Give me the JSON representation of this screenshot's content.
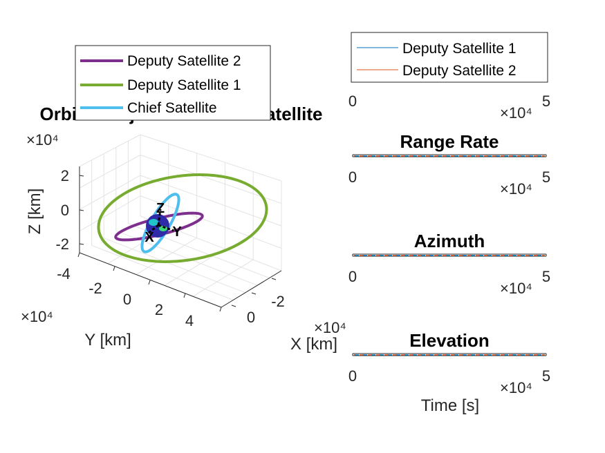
{
  "chart_data": [
    {
      "type": "line",
      "title": "Orbital Trajectories from Satellite",
      "xlabel": "X [km]",
      "ylabel": "Y [km]",
      "zlabel": "Z [km]",
      "exponent_label": "×10⁴",
      "x_ticks": [
        "-2",
        "0"
      ],
      "y_ticks": [
        "-4",
        "-2",
        "0",
        "2",
        "4"
      ],
      "z_ticks": [
        "2",
        "0",
        "-2"
      ],
      "frame_axis_labels": [
        "Z",
        "Y",
        "X"
      ],
      "grid": true,
      "legend_position": "top",
      "legend": [
        "Deputy Satellite 2",
        "Deputy Satellite 1",
        "Chief Satellite"
      ],
      "series": [
        {
          "name": "Deputy Satellite 2",
          "color": "#7E2F8E",
          "orbit": {
            "semi_axis_a": 1.9,
            "semi_axis_b": 0.35,
            "tilt_deg": -14
          }
        },
        {
          "name": "Deputy Satellite 1",
          "color": "#77AC30",
          "orbit": {
            "semi_axis_a": 3.6,
            "semi_axis_b": 1.8,
            "tilt_deg": -8
          }
        },
        {
          "name": "Chief Satellite",
          "color": "#4DBEEE",
          "orbit": {
            "semi_axis_a": 1.4,
            "semi_axis_b": 0.4,
            "tilt_deg": -60
          }
        }
      ]
    },
    {
      "type": "line",
      "title": "",
      "xlabel": "",
      "xlim": [
        0,
        50000
      ],
      "x_ticks": [
        "0",
        "5"
      ],
      "exponent_label": "×10⁴",
      "legend_position": "top-right",
      "legend": [
        "Deputy Satellite 1",
        "Deputy Satellite 2"
      ],
      "series": [
        {
          "name": "Deputy Satellite 1",
          "color": "#0072BD"
        },
        {
          "name": "Deputy Satellite 2",
          "color": "#D95319"
        }
      ]
    },
    {
      "type": "line",
      "title": "Range Rate",
      "xlim": [
        0,
        50000
      ],
      "x_ticks": [
        "0",
        "5"
      ],
      "exponent_label": "×10⁴",
      "series": [
        {
          "name": "Deputy Satellite 1",
          "color": "#0072BD"
        },
        {
          "name": "Deputy Satellite 2",
          "color": "#D95319"
        }
      ]
    },
    {
      "type": "line",
      "title": "Azimuth",
      "xlim": [
        0,
        50000
      ],
      "x_ticks": [
        "0",
        "5"
      ],
      "exponent_label": "×10⁴",
      "series": [
        {
          "name": "Deputy Satellite 1",
          "color": "#0072BD"
        },
        {
          "name": "Deputy Satellite 2",
          "color": "#D95319"
        }
      ]
    },
    {
      "type": "line",
      "title": "Elevation",
      "xlabel": "Time [s]",
      "xlim": [
        0,
        50000
      ],
      "x_ticks": [
        "0",
        "5"
      ],
      "exponent_label": "×10⁴",
      "series": [
        {
          "name": "Deputy Satellite 1",
          "color": "#0072BD"
        },
        {
          "name": "Deputy Satellite 2",
          "color": "#D95319"
        }
      ]
    }
  ]
}
